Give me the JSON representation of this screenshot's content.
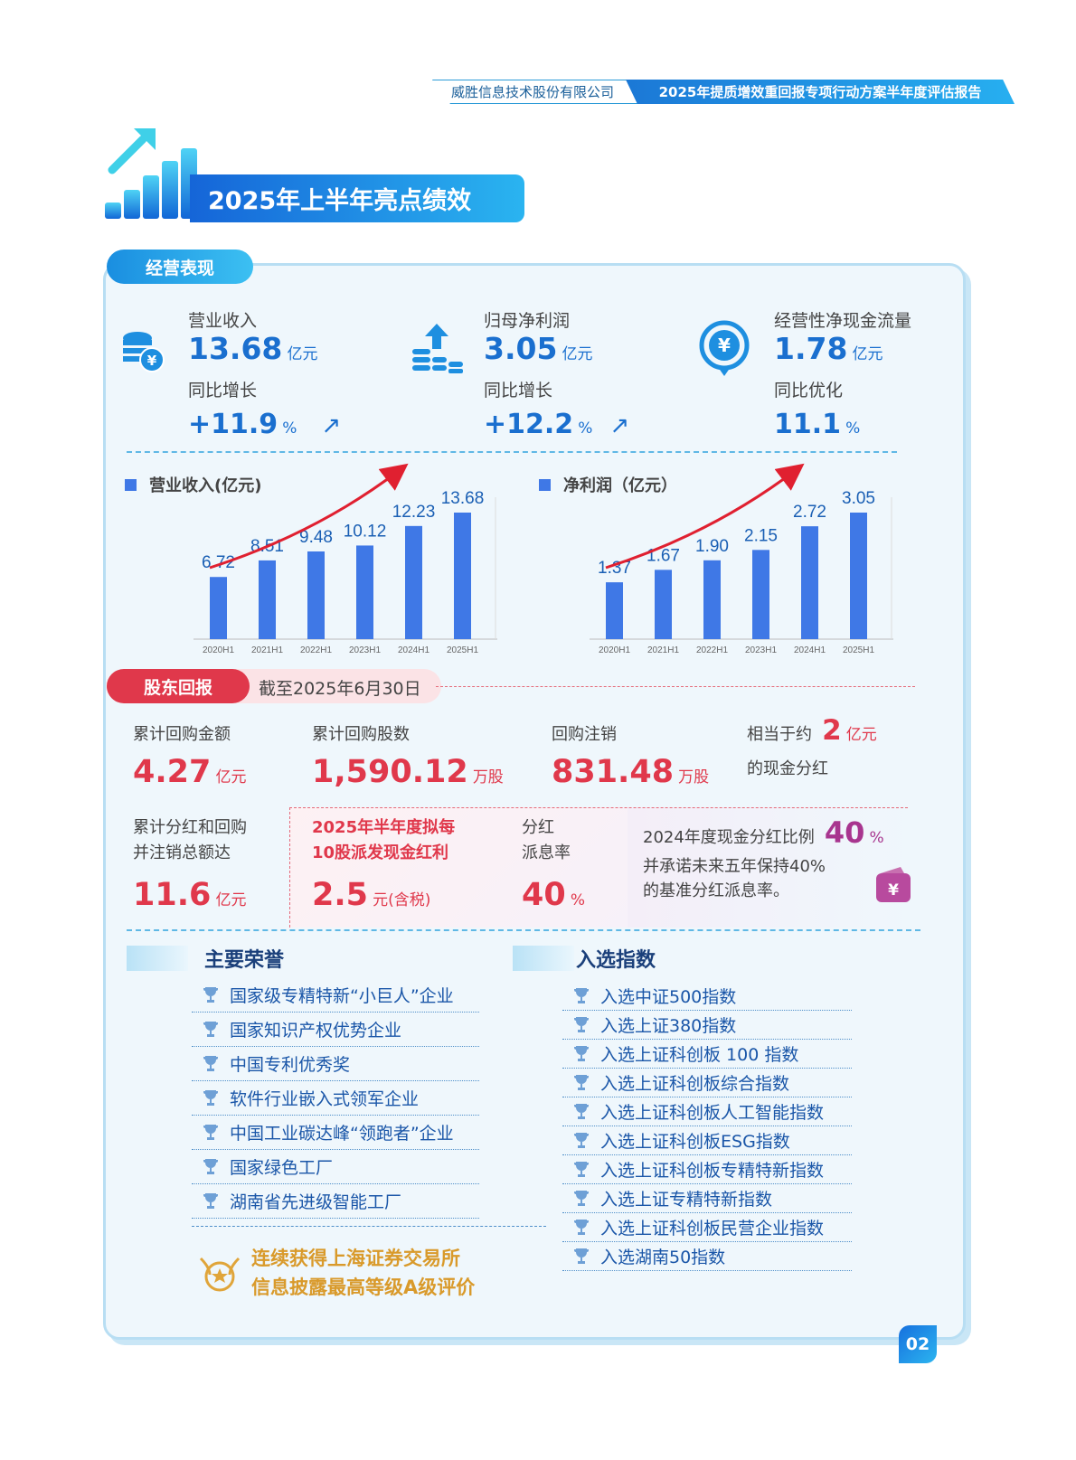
{
  "header": {
    "company": "威胜信息技术股份有限公司",
    "report": "2025年提质增效重回报专项行动方案半年度评估报告"
  },
  "title": "2025年上半年亮点绩效",
  "ops": {
    "pill": "经营表现",
    "kpis": [
      {
        "label": "营业收入",
        "value": "13.68",
        "unit": "亿元",
        "sub": "同比增长",
        "change": "+11.9",
        "change_unit": "%",
        "arrow": "↗"
      },
      {
        "label": "归母净利润",
        "value": "3.05",
        "unit": "亿元",
        "sub": "同比增长",
        "change": "+12.2",
        "change_unit": "%",
        "arrow": "↗"
      },
      {
        "label": "经营性净现金流量",
        "value": "1.78",
        "unit": "亿元",
        "sub": "同比优化",
        "change": "11.1",
        "change_unit": "%",
        "arrow": ""
      }
    ]
  },
  "chart_data": [
    {
      "type": "bar",
      "title": "营业收入(亿元)",
      "categories": [
        "2020H1",
        "2021H1",
        "2022H1",
        "2023H1",
        "2024H1",
        "2025H1"
      ],
      "values": [
        6.72,
        8.51,
        9.48,
        10.12,
        12.23,
        13.68
      ],
      "labels": [
        "6.72",
        "8.51",
        "9.48",
        "10.12",
        "12.23",
        "13.68"
      ],
      "color": "#3f78e6"
    },
    {
      "type": "bar",
      "title": "净利润（亿元）",
      "categories": [
        "2020H1",
        "2021H1",
        "2022H1",
        "2023H1",
        "2024H1",
        "2025H1"
      ],
      "values": [
        1.37,
        1.67,
        1.9,
        2.15,
        2.72,
        3.05
      ],
      "labels": [
        "1.37",
        "1.67",
        "1.90",
        "2.15",
        "2.72",
        "3.05"
      ],
      "color": "#3f78e6"
    }
  ],
  "shareholder": {
    "pill": "股东回报",
    "date": "截至2025年6月30日",
    "buyback_amount": {
      "label": "累计回购金额",
      "value": "4.27",
      "unit": "亿元"
    },
    "buyback_shares": {
      "label": "累计回购股数",
      "value": "1,590.12",
      "unit": "万股"
    },
    "cancel": {
      "label": "回购注销",
      "value": "831.48",
      "unit": "万股"
    },
    "equiv": {
      "prefix": "相当于约",
      "value": "2",
      "unit": "亿元",
      "suffix": "的现金分红"
    },
    "total": {
      "line1": "累计分红和回购",
      "line2": "并注销总额达",
      "value": "11.6",
      "unit": "亿元"
    },
    "plan": {
      "line1": "2025年半年度拟每",
      "line2": "10股派发现金红利",
      "value": "2.5",
      "unit": "元(含税)"
    },
    "yield": {
      "line1": "分红",
      "line2": "派息率",
      "value": "40",
      "unit": "%"
    },
    "ratio": {
      "line1": "2024年度现金分红比例",
      "value": "40",
      "unit": "%",
      "line2": "并承诺未来五年保持40%",
      "line3": "的基准分红派息率。"
    }
  },
  "honors": {
    "title": "主要荣誉",
    "items": [
      "国家级专精特新“小巨人”企业",
      "国家知识产权优势企业",
      "中国专利优秀奖",
      "软件行业嵌入式领军企业",
      "中国工业碳达峰“领跑者”企业",
      "国家绿色工厂",
      "湖南省先进级智能工厂"
    ],
    "award_line1": "连续获得上海证券交易所",
    "award_line2": "信息披露最高等级A级评价"
  },
  "indexes": {
    "title": "入选指数",
    "items": [
      "入选中证500指数",
      "入选上证380指数",
      "入选上证科创板 100 指数",
      "入选上证科创板综合指数",
      "入选上证科创板人工智能指数",
      "入选上证科创板ESG指数",
      "入选上证科创板专精特新指数",
      "入选上证专精特新指数",
      "入选上证科创板民营企业指数",
      "入选湖南50指数"
    ]
  },
  "page_number": "02"
}
